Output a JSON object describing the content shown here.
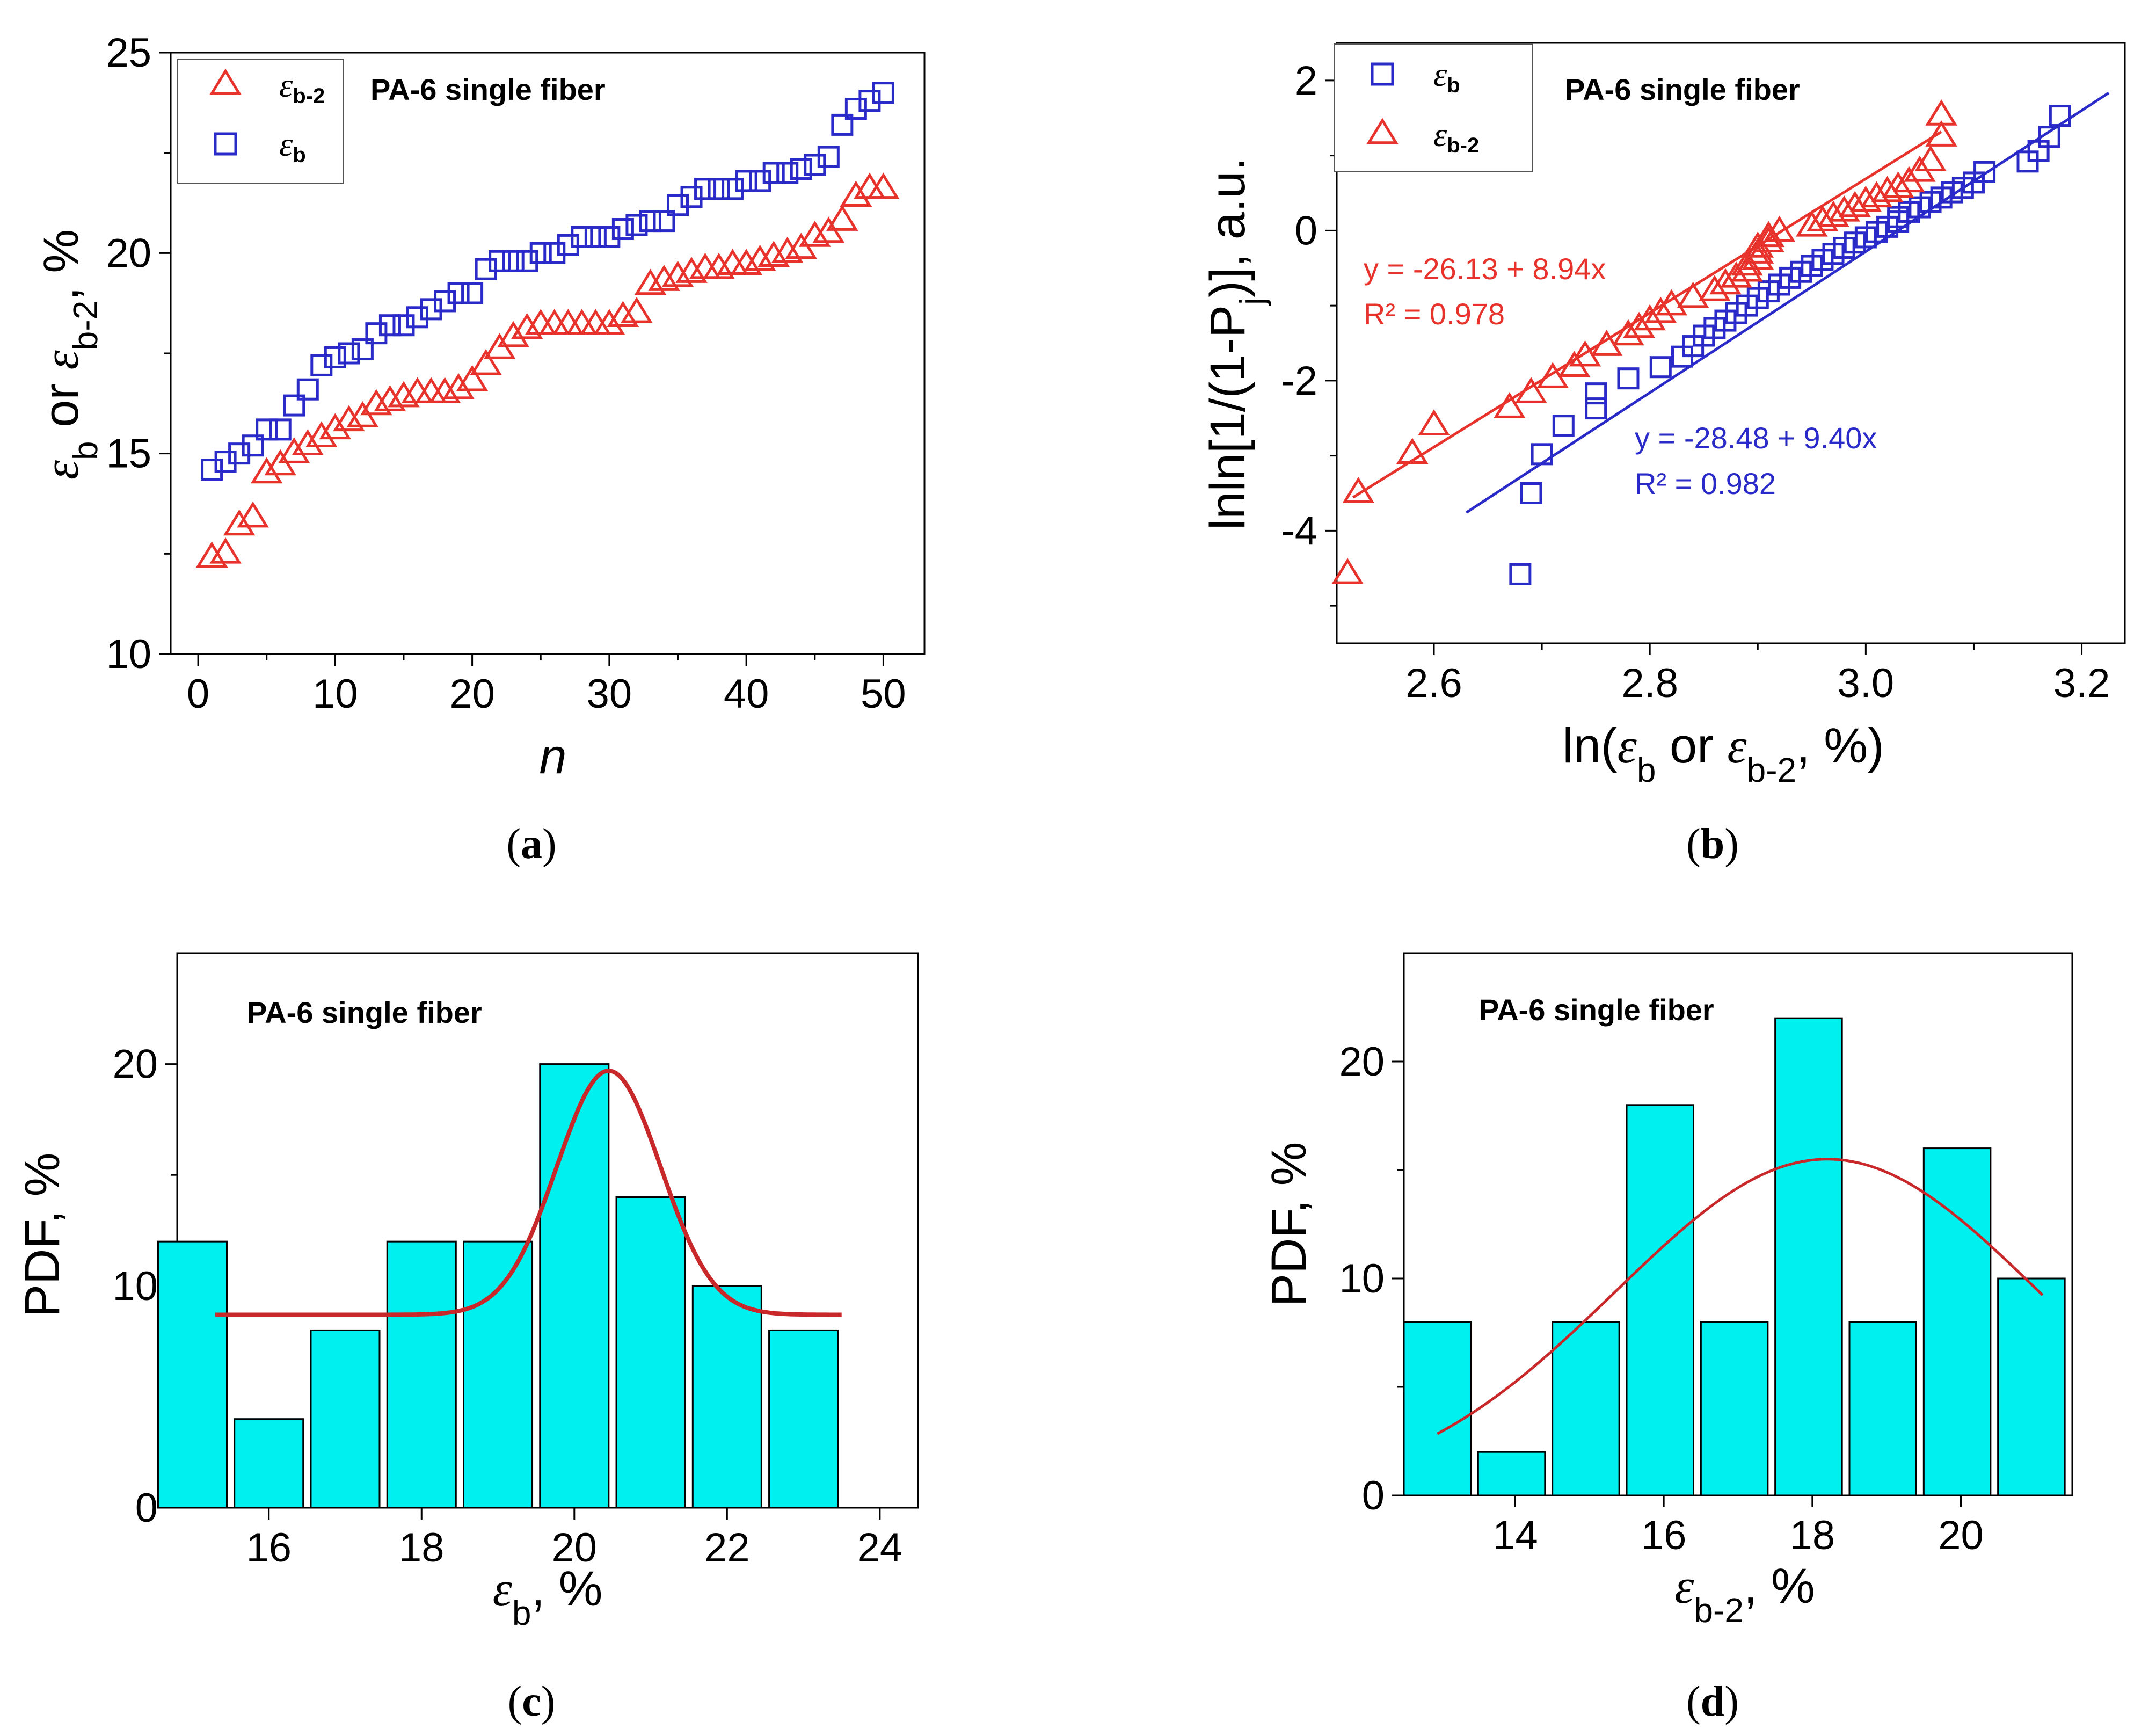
{
  "panels": {
    "a": {
      "label": "a"
    },
    "b": {
      "label": "b"
    },
    "c": {
      "label": "c"
    },
    "d": {
      "label": "d"
    }
  },
  "colors": {
    "red": "#e8322c",
    "blue": "#2a2ac8",
    "cyan": "#00f0f0",
    "fitred": "#c8282a"
  },
  "chart_data": [
    {
      "id": "a",
      "type": "scatter",
      "annotation": "PA-6 single fiber",
      "xlabel": "n",
      "ylabel": "εb or εb-2, %",
      "xlim": [
        -2,
        53
      ],
      "ylim": [
        10,
        25
      ],
      "xticks": [
        0,
        10,
        20,
        30,
        40,
        50
      ],
      "yticks": [
        10,
        15,
        20,
        25
      ],
      "legend": [
        {
          "sym": "ε",
          "sub": "b-2",
          "series": "eb2"
        },
        {
          "sym": "ε",
          "sub": "b",
          "series": "eb"
        }
      ],
      "series": [
        {
          "name": "εb-2",
          "key": "eb2",
          "marker": "triangle",
          "color": "red",
          "x": [
            1,
            2,
            3,
            4,
            5,
            6,
            7,
            8,
            9,
            10,
            11,
            12,
            13,
            14,
            15,
            16,
            17,
            18,
            19,
            20,
            21,
            22,
            23,
            24,
            25,
            26,
            27,
            28,
            29,
            30,
            31,
            32,
            33,
            34,
            35,
            36,
            37,
            38,
            39,
            40,
            41,
            42,
            43,
            44,
            45,
            46,
            47,
            48,
            49,
            50
          ],
          "y": [
            12.4,
            12.5,
            13.2,
            13.4,
            14.5,
            14.7,
            15.0,
            15.2,
            15.4,
            15.6,
            15.8,
            15.9,
            16.2,
            16.3,
            16.4,
            16.5,
            16.5,
            16.5,
            16.6,
            16.8,
            17.2,
            17.6,
            17.9,
            18.1,
            18.2,
            18.2,
            18.2,
            18.2,
            18.2,
            18.2,
            18.4,
            18.5,
            19.2,
            19.3,
            19.4,
            19.5,
            19.6,
            19.6,
            19.7,
            19.7,
            19.8,
            19.9,
            20.0,
            20.1,
            20.4,
            20.5,
            20.8,
            21.4,
            21.6,
            21.6
          ]
        },
        {
          "name": "εb",
          "key": "eb",
          "marker": "square",
          "color": "blue",
          "x": [
            1,
            2,
            3,
            4,
            5,
            6,
            7,
            8,
            9,
            10,
            11,
            12,
            13,
            14,
            15,
            16,
            17,
            18,
            19,
            20,
            21,
            22,
            23,
            24,
            25,
            26,
            27,
            28,
            29,
            30,
            31,
            32,
            33,
            34,
            35,
            36,
            37,
            38,
            39,
            40,
            41,
            42,
            43,
            44,
            45,
            46,
            47,
            48,
            49,
            50
          ],
          "y": [
            14.6,
            14.8,
            15.0,
            15.2,
            15.6,
            15.6,
            16.2,
            16.6,
            17.2,
            17.4,
            17.5,
            17.6,
            18.0,
            18.2,
            18.2,
            18.4,
            18.6,
            18.8,
            19.0,
            19.0,
            19.6,
            19.8,
            19.8,
            19.8,
            20.0,
            20.0,
            20.2,
            20.4,
            20.4,
            20.4,
            20.6,
            20.7,
            20.8,
            20.8,
            21.2,
            21.4,
            21.6,
            21.6,
            21.6,
            21.8,
            21.8,
            22.0,
            22.0,
            22.1,
            22.2,
            22.4,
            23.2,
            23.6,
            23.8,
            24.0
          ]
        }
      ]
    },
    {
      "id": "b",
      "type": "scatter",
      "annotation": "PA-6 single fiber",
      "xlabel": "ln(εb or εb-2, %)",
      "ylabel": "lnln[1/(1-Pj)], a.u.",
      "xlim": [
        2.51,
        3.24
      ],
      "ylim": [
        -5.5,
        2.5
      ],
      "xticks": [
        2.6,
        2.8,
        3.0,
        3.2
      ],
      "yticks": [
        -4,
        -2,
        0,
        2
      ],
      "legend": [
        {
          "sym": "ε",
          "sub": "b",
          "series": "eb"
        },
        {
          "sym": "ε",
          "sub": "b-2",
          "series": "eb2"
        }
      ],
      "fits": [
        {
          "series": "eb2",
          "intercept": -26.13,
          "slope": 8.94,
          "x_range": [
            2.525,
            3.07
          ],
          "eq": "y = -26.13 + 8.94x",
          "r2": "R² = 0.978"
        },
        {
          "series": "eb",
          "intercept": -28.48,
          "slope": 9.4,
          "x_range": [
            2.63,
            3.225
          ],
          "eq": "y = -28.48 + 9.40x",
          "r2": "R² = 0.982"
        }
      ],
      "series": [
        {
          "name": "εb",
          "key": "eb",
          "marker": "square",
          "color": "blue",
          "x": [
            2.68,
            2.69,
            2.7,
            2.72,
            2.75,
            2.75,
            2.78,
            2.81,
            2.83,
            2.84,
            2.85,
            2.86,
            2.87,
            2.88,
            2.89,
            2.9,
            2.91,
            2.92,
            2.93,
            2.94,
            2.95,
            2.96,
            2.97,
            2.98,
            2.99,
            3.0,
            3.01,
            3.02,
            3.03,
            3.03,
            3.04,
            3.05,
            3.06,
            3.07,
            3.08,
            3.09,
            3.1,
            3.11,
            3.15,
            3.16,
            3.17,
            3.18
          ],
          "y": [
            -4.58,
            -3.5,
            -2.98,
            -2.6,
            -2.37,
            -2.17,
            -1.97,
            -1.82,
            -1.68,
            -1.54,
            -1.4,
            -1.3,
            -1.2,
            -1.1,
            -1.0,
            -0.9,
            -0.81,
            -0.72,
            -0.63,
            -0.55,
            -0.47,
            -0.39,
            -0.31,
            -0.23,
            -0.16,
            -0.09,
            -0.02,
            0.05,
            0.12,
            0.18,
            0.25,
            0.31,
            0.38,
            0.44,
            0.51,
            0.57,
            0.64,
            0.78,
            0.92,
            1.06,
            1.25,
            1.53
          ]
        },
        {
          "name": "εb-2",
          "key": "eb2",
          "marker": "triangle",
          "color": "red",
          "x": [
            2.52,
            2.53,
            2.58,
            2.6,
            2.67,
            2.69,
            2.71,
            2.73,
            2.74,
            2.76,
            2.78,
            2.79,
            2.8,
            2.81,
            2.82,
            2.84,
            2.86,
            2.87,
            2.88,
            2.89,
            2.89,
            2.9,
            2.9,
            2.9,
            2.91,
            2.91,
            2.92,
            2.95,
            2.96,
            2.97,
            2.98,
            2.99,
            3.0,
            3.01,
            3.02,
            3.03,
            3.04,
            3.05,
            3.06,
            3.07,
            3.07
          ],
          "y": [
            -4.58,
            -3.5,
            -2.98,
            -2.6,
            -2.37,
            -2.17,
            -1.97,
            -1.82,
            -1.68,
            -1.54,
            -1.4,
            -1.3,
            -1.2,
            -1.1,
            -1.0,
            -0.9,
            -0.81,
            -0.72,
            -0.63,
            -0.55,
            -0.47,
            -0.39,
            -0.31,
            -0.23,
            -0.16,
            -0.09,
            -0.02,
            0.05,
            0.12,
            0.18,
            0.25,
            0.31,
            0.38,
            0.44,
            0.51,
            0.57,
            0.64,
            0.78,
            0.92,
            1.25,
            1.53
          ]
        }
      ]
    },
    {
      "id": "c",
      "type": "bar",
      "annotation": "PA-6 single fiber",
      "xlabel": "εb, %",
      "ylabel": "PDF, %",
      "xlim": [
        14.8,
        24.5
      ],
      "ylim": [
        0,
        25
      ],
      "xticks": [
        16,
        18,
        20,
        22,
        24
      ],
      "yticks": [
        0,
        10,
        20
      ],
      "bin_width": 0.9,
      "bins": [
        15.0,
        16.0,
        17.0,
        18.0,
        19.0,
        20.0,
        21.0,
        22.0,
        23.0
      ],
      "values": [
        12,
        4,
        8,
        12,
        12,
        20,
        14,
        10,
        8
      ],
      "fit": {
        "baseline": 8.7,
        "amp": 11.0,
        "center": 20.45,
        "sigma": 0.68,
        "x_range": [
          15.3,
          23.5
        ]
      }
    },
    {
      "id": "d",
      "type": "bar",
      "annotation": "PA-6 single fiber",
      "xlabel": "εb-2, %",
      "ylabel": "PDF, %",
      "xlim": [
        12.5,
        21.5
      ],
      "ylim": [
        0,
        25
      ],
      "xticks": [
        14,
        16,
        18,
        20
      ],
      "yticks": [
        0,
        10,
        20
      ],
      "bin_width": 0.9,
      "bins": [
        12.95,
        13.95,
        14.95,
        15.95,
        16.95,
        17.95,
        18.95,
        19.95,
        20.95
      ],
      "values": [
        8,
        2,
        8,
        18,
        8,
        22,
        8,
        16,
        10
      ],
      "fit": {
        "baseline": 0,
        "amp": 15.5,
        "center": 18.2,
        "sigma": 2.85,
        "x_range": [
          12.95,
          21.1
        ]
      }
    }
  ]
}
